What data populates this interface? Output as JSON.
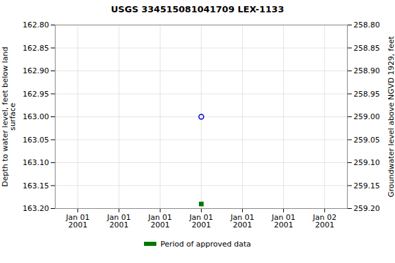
{
  "chart_data": {
    "type": "scatter",
    "title": "USGS 334515081041709 LEX-1133",
    "ylabel": "Depth to water level, feet below land\nsurface",
    "y2label": "Groundwater level above NGVD 1929, feet",
    "categories": [
      "Jan 01\n2001",
      "Jan 01\n2001",
      "Jan 01\n2001",
      "Jan 01\n2001",
      "Jan 01\n2001",
      "Jan 01\n2001",
      "Jan 02\n2001"
    ],
    "series": [
      {
        "color": "#0000cc",
        "marker": "circle",
        "values": [
          null,
          null,
          null,
          163.0,
          null,
          null,
          null
        ]
      },
      {
        "name": "Period of approved data",
        "color": "#007700",
        "marker": "square",
        "values": [
          null,
          null,
          null,
          163.19,
          null,
          null,
          null
        ]
      }
    ],
    "ylim": [
      163.2,
      162.8
    ],
    "yticks": [
      {
        "value": 162.8,
        "label": "162.80"
      },
      {
        "value": 162.85,
        "label": "162.85"
      },
      {
        "value": 162.9,
        "label": "162.90"
      },
      {
        "value": 162.95,
        "label": "162.95"
      },
      {
        "value": 163.0,
        "label": "163.00"
      },
      {
        "value": 163.05,
        "label": "163.05"
      },
      {
        "value": 163.1,
        "label": "163.10"
      },
      {
        "value": 163.15,
        "label": "163.15"
      },
      {
        "value": 163.2,
        "label": "163.20"
      }
    ],
    "y2lim": [
      259.2,
      258.8
    ],
    "y2ticks": [
      {
        "value": 258.8,
        "label": "258.80"
      },
      {
        "value": 258.85,
        "label": "258.85"
      },
      {
        "value": 258.9,
        "label": "258.90"
      },
      {
        "value": 258.95,
        "label": "258.95"
      },
      {
        "value": 259.0,
        "label": "259.00"
      },
      {
        "value": 259.05,
        "label": "259.05"
      },
      {
        "value": 259.1,
        "label": "259.10"
      },
      {
        "value": 259.15,
        "label": "259.15"
      },
      {
        "value": 259.2,
        "label": "259.20"
      }
    ],
    "grid": true,
    "legend": "bottom"
  }
}
